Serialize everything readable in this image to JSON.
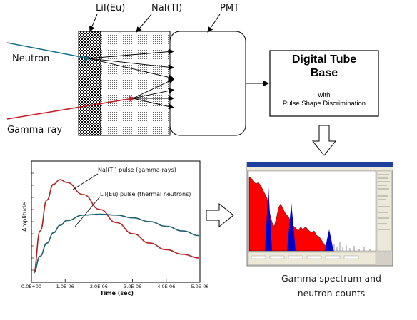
{
  "detector": {
    "lil_label": "LiI(Eu)",
    "nai_label": "NaI(Tl)",
    "pmt_label": "PMT",
    "neutron_label": "Neutron",
    "gamma_label": "Gamma-ray"
  },
  "tube_base": {
    "title_line1": "Digital Tube",
    "title_line2": "Base",
    "sub_line1": "with",
    "sub_line2": "Pulse Shape Discrimination"
  },
  "caption": {
    "line1": "Gamma spectrum and",
    "line2": "neutron counts"
  },
  "colors": {
    "neutron_arrow": "#1a6f86",
    "gamma_arrow": "#c0202a",
    "nai_pulse": "#b22222",
    "lil_pulse": "#1f5f70",
    "spectrum_fill_red": "#ff0000",
    "spectrum_fill_blue": "#0000cc"
  },
  "chart_data": {
    "type": "line",
    "xlabel": "Time (sec)",
    "ylabel": "Amplitude",
    "x_ticks": [
      "0.0E+00",
      "1.0E-06",
      "2.0E-06",
      "3.0E-06",
      "4.0E-06",
      "5.0E-06"
    ],
    "xlim": [
      0,
      5e-06
    ],
    "annotations": [
      "NaI(Tl) pulse (gamma-rays)",
      "LiI(Eu) pulse (thermal neutrons)"
    ],
    "series": [
      {
        "name": "NaI(Tl) pulse (gamma-rays)",
        "x": [
          0,
          2e-07,
          4e-07,
          6e-07,
          8e-07,
          1e-06,
          1.5e-06,
          2e-06,
          2.5e-06,
          3e-06,
          3.5e-06,
          4e-06,
          4.5e-06,
          5e-06
        ],
        "y": [
          0.0,
          0.45,
          0.78,
          0.95,
          1.0,
          0.97,
          0.84,
          0.68,
          0.54,
          0.42,
          0.32,
          0.25,
          0.2,
          0.16
        ]
      },
      {
        "name": "LiI(Eu) pulse (thermal neutrons)",
        "x": [
          0,
          2e-07,
          4e-07,
          6e-07,
          8e-07,
          1e-06,
          1.5e-06,
          2e-06,
          2.5e-06,
          3e-06,
          3.5e-06,
          4e-06,
          4.5e-06,
          5e-06
        ],
        "y": [
          0.0,
          0.18,
          0.32,
          0.43,
          0.51,
          0.56,
          0.62,
          0.63,
          0.62,
          0.59,
          0.55,
          0.5,
          0.45,
          0.4
        ]
      }
    ]
  }
}
